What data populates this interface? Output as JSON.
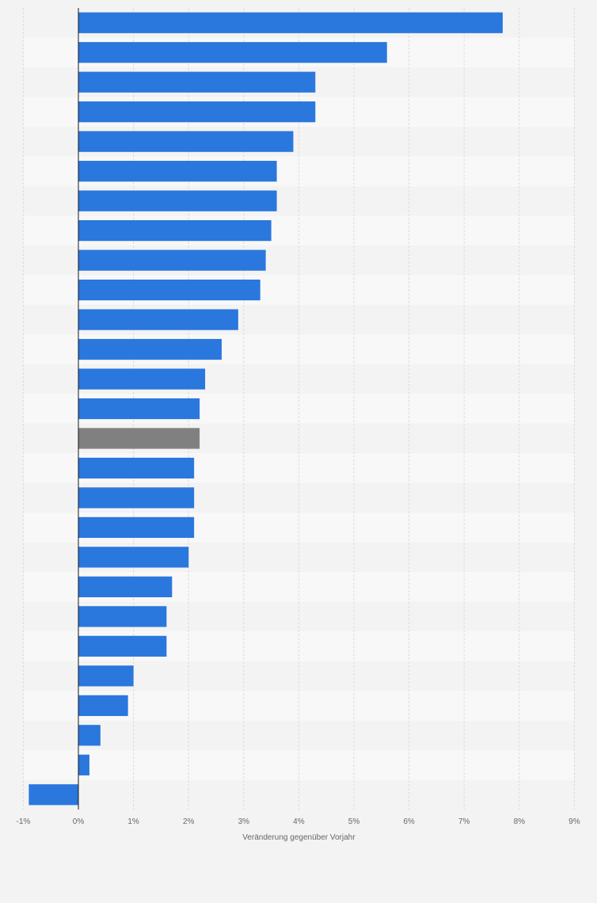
{
  "chart_data": {
    "type": "bar",
    "orientation": "horizontal",
    "xlabel": "Veränderung gegenüber Vorjahr",
    "xlim": [
      -1,
      9
    ],
    "x_ticks": [
      "-1%",
      "0%",
      "1%",
      "2%",
      "3%",
      "4%",
      "5%",
      "6%",
      "7%",
      "8%",
      "9%"
    ],
    "category_labels_visible": false,
    "grid": true,
    "values": [
      7.7,
      5.6,
      4.3,
      4.3,
      3.9,
      3.6,
      3.6,
      3.5,
      3.4,
      3.3,
      2.9,
      2.6,
      2.3,
      2.2,
      2.2,
      2.1,
      2.1,
      2.1,
      2.0,
      1.7,
      1.6,
      1.6,
      1.0,
      0.9,
      0.4,
      0.2,
      -0.9
    ],
    "highlight_index": 14,
    "colors": {
      "bar": "#2a77dd",
      "highlight": "#808080",
      "band_light": "#f8f8f8",
      "band_dark": "#f3f3f3",
      "grid": "#dcdcdc",
      "zero_line": "#1a1a1a"
    }
  }
}
